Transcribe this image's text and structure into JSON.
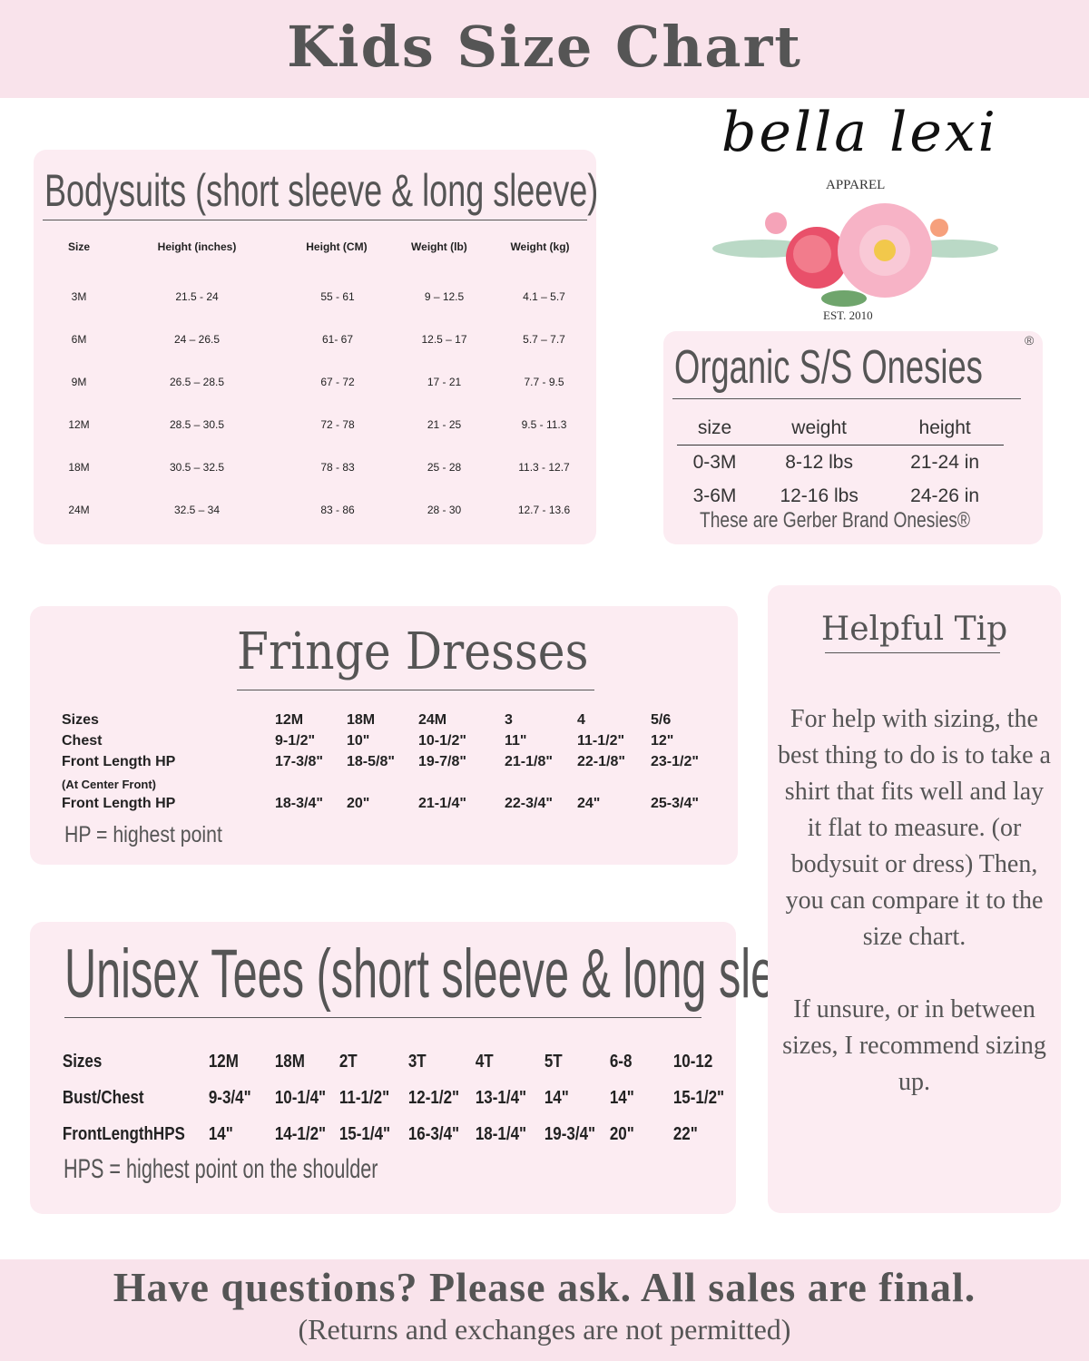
{
  "title": "Kids Size Chart",
  "logo": {
    "name": "bella lexi",
    "sub": "APPAREL",
    "est": "EST. 2010"
  },
  "bodysuits": {
    "title": "Bodysuits (short sleeve & long sleeve)",
    "headers": [
      "Size",
      "Height (inches)",
      "Height (CM)",
      "Weight (lb)",
      "Weight (kg)"
    ],
    "rows": [
      [
        "3M",
        "21.5 - 24",
        "55 - 61",
        "9 – 12.5",
        "4.1 – 5.7"
      ],
      [
        "6M",
        "24 – 26.5",
        "61- 67",
        "12.5 – 17",
        "5.7 – 7.7"
      ],
      [
        "9M",
        "26.5 – 28.5",
        "67 - 72",
        "17 - 21",
        "7.7 - 9.5"
      ],
      [
        "12M",
        "28.5 – 30.5",
        "72 - 78",
        "21 - 25",
        "9.5 - 11.3"
      ],
      [
        "18M",
        "30.5 – 32.5",
        "78 - 83",
        "25 - 28",
        "11.3 - 12.7"
      ],
      [
        "24M",
        "32.5 – 34",
        "83 - 86",
        "28 - 30",
        "12.7 - 13.6"
      ]
    ]
  },
  "onesies": {
    "title": "Organic S/S Onesies",
    "reg": "®",
    "headers": [
      "size",
      "weight",
      "height"
    ],
    "rows": [
      [
        "0-3M",
        "8-12 lbs",
        "21-24 in"
      ],
      [
        "3-6M",
        "12-16 lbs",
        "24-26 in"
      ]
    ],
    "note": "These are Gerber Brand Onesies®"
  },
  "fringe": {
    "title": "Fringe Dresses",
    "rows": [
      [
        "Sizes",
        "12M",
        "18M",
        "24M",
        "3",
        "4",
        "5/6"
      ],
      [
        "Chest",
        "9-1/2\"",
        "10\"",
        "10-1/2\"",
        "11\"",
        "11-1/2\"",
        "12\""
      ],
      [
        "Front Length HP",
        "17-3/8\"",
        "18-5/8\"",
        "19-7/8\"",
        "21-1/8\"",
        "22-1/8\"",
        "23-1/2\""
      ],
      [
        "(At Center Front)",
        "",
        "",
        "",
        "",
        "",
        ""
      ],
      [
        "Front Length HP",
        "18-3/4\"",
        "20\"",
        "21-1/4\"",
        "22-3/4\"",
        "24\"",
        "25-3/4\""
      ]
    ],
    "note": "HP = highest point"
  },
  "tees": {
    "title": "Unisex Tees (short sleeve & long sleeve)",
    "rows": [
      [
        "Sizes",
        "12M",
        "18M",
        "2T",
        "3T",
        "4T",
        "5T",
        "6-8",
        "10-12"
      ],
      [
        "Bust/Chest",
        "9-3/4\"",
        "10-1/4\"",
        "11-1/2\"",
        "12-1/2\"",
        "13-1/4\"",
        "14\"",
        "14\"",
        "15-1/2\""
      ],
      [
        "FrontLengthHPS",
        "14\"",
        "14-1/2\"",
        "15-1/4\"",
        "16-3/4\"",
        "18-1/4\"",
        "19-3/4\"",
        "20\"",
        "22\""
      ]
    ],
    "note": "HPS = highest point on the shoulder"
  },
  "tip": {
    "title": "Helpful Tip",
    "p1": "For help with sizing, the best thing to do is to take a shirt that fits well and lay it flat to measure. (or bodysuit or dress) Then, you can compare it to the size chart.",
    "p2": "If unsure, or in between sizes, I recommend sizing up."
  },
  "footer": {
    "line1": "Have questions? Please ask. All sales are final.",
    "line2": "(Returns and exchanges are not permitted)"
  }
}
